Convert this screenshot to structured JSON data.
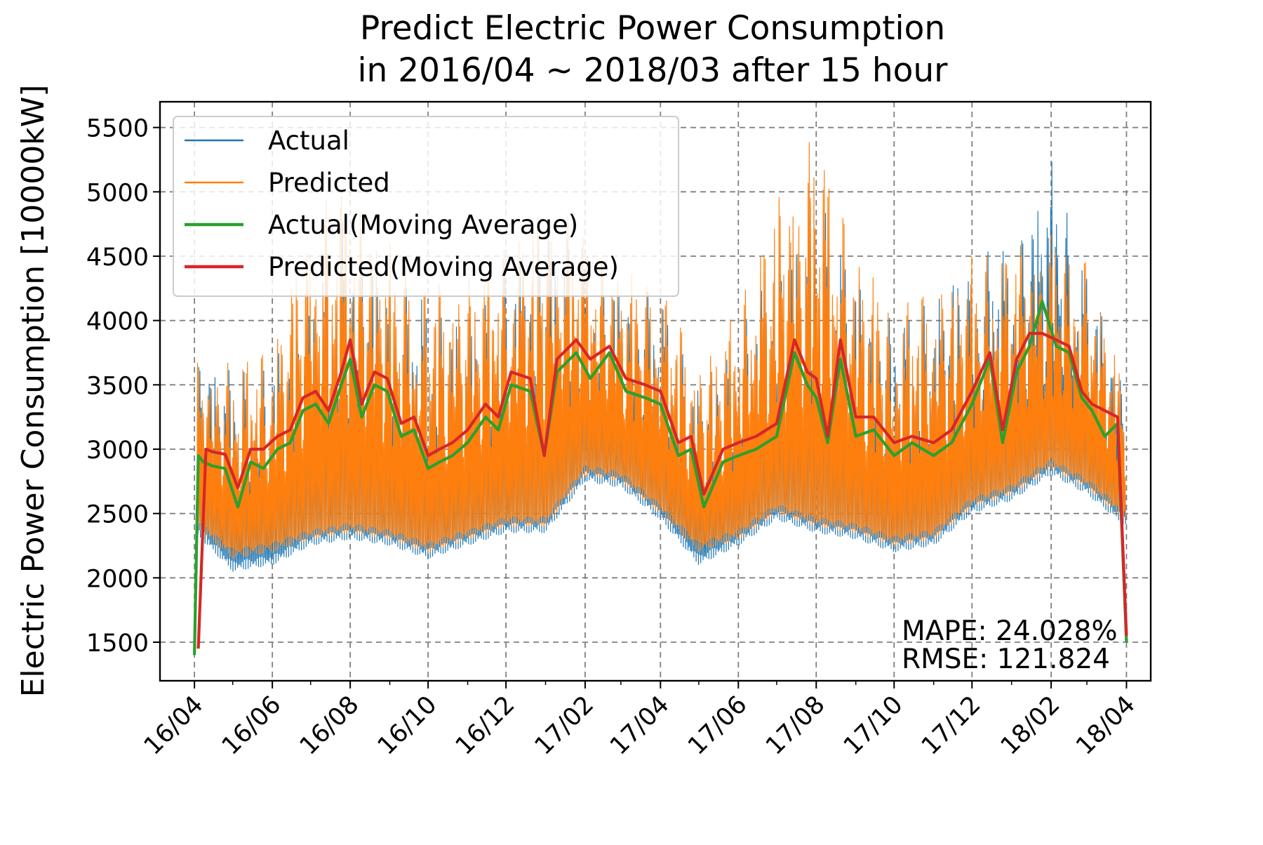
{
  "chart_data": {
    "type": "line",
    "title": "Predict Electric Power Consumption\n in 2016/04 ~ 2018/03 after 15 hour",
    "title_lines": [
      "Predict Electric Power Consumption",
      "in 2016/04 ~ 2018/03 after 15 hour"
    ],
    "xlabel": "",
    "ylabel": "Electric Power Consumption [10000kW]",
    "ylim": [
      1200,
      5700
    ],
    "xlim": [
      "2016-03-05",
      "2018-04-20"
    ],
    "grid": true,
    "legend_position": "top-left",
    "x_ticks": [
      "16/04",
      "16/06",
      "16/08",
      "16/10",
      "16/12",
      "17/02",
      "17/04",
      "17/06",
      "17/08",
      "17/10",
      "17/12",
      "18/02",
      "18/04"
    ],
    "x_tick_dates": [
      "2016-04-01",
      "2016-06-01",
      "2016-08-01",
      "2016-10-01",
      "2016-12-01",
      "2017-02-01",
      "2017-04-01",
      "2017-06-01",
      "2017-08-01",
      "2017-10-01",
      "2017-12-01",
      "2018-02-01",
      "2018-04-01"
    ],
    "y_ticks": [
      1500,
      2000,
      2500,
      3000,
      3500,
      4000,
      4500,
      5000,
      5500
    ],
    "annotations": [
      "MAPE: 24.028%",
      "RMSE: 121.824"
    ],
    "series_styles": [
      {
        "name": "Actual",
        "color": "#1f77b4",
        "kind": "band"
      },
      {
        "name": "Predicted",
        "color": "#ff7f0e",
        "kind": "band"
      },
      {
        "name": "Actual(Moving Average)",
        "color": "#2ca02c",
        "kind": "line"
      },
      {
        "name": "Predicted(Moving Average)",
        "color": "#d62728",
        "kind": "line"
      }
    ],
    "series": [
      {
        "name": "Actual(Moving Average)",
        "x": [
          "2016-04-01",
          "2016-04-04",
          "2016-04-08",
          "2016-04-15",
          "2016-04-25",
          "2016-05-05",
          "2016-05-15",
          "2016-05-25",
          "2016-06-05",
          "2016-06-15",
          "2016-06-25",
          "2016-07-05",
          "2016-07-15",
          "2016-07-25",
          "2016-08-01",
          "2016-08-10",
          "2016-08-20",
          "2016-08-30",
          "2016-09-10",
          "2016-09-20",
          "2016-10-01",
          "2016-10-10",
          "2016-10-20",
          "2016-11-01",
          "2016-11-15",
          "2016-11-25",
          "2016-12-05",
          "2016-12-20",
          "2016-12-31",
          "2017-01-10",
          "2017-01-25",
          "2017-02-05",
          "2017-02-20",
          "2017-03-05",
          "2017-03-20",
          "2017-04-01",
          "2017-04-15",
          "2017-04-25",
          "2017-05-05",
          "2017-05-20",
          "2017-06-01",
          "2017-06-15",
          "2017-07-01",
          "2017-07-15",
          "2017-07-25",
          "2017-08-01",
          "2017-08-10",
          "2017-08-20",
          "2017-09-01",
          "2017-09-15",
          "2017-10-01",
          "2017-10-15",
          "2017-11-01",
          "2017-11-15",
          "2017-12-01",
          "2017-12-15",
          "2017-12-25",
          "2018-01-05",
          "2018-01-15",
          "2018-01-25",
          "2018-02-05",
          "2018-02-15",
          "2018-02-25",
          "2018-03-05",
          "2018-03-15",
          "2018-03-25",
          "2018-04-01"
        ],
        "values": [
          1400,
          2950,
          2900,
          2870,
          2850,
          2550,
          2900,
          2850,
          3000,
          3050,
          3300,
          3350,
          3200,
          3500,
          3700,
          3250,
          3500,
          3450,
          3100,
          3150,
          2850,
          2900,
          2950,
          3050,
          3250,
          3150,
          3500,
          3450,
          2950,
          3600,
          3750,
          3550,
          3750,
          3450,
          3400,
          3350,
          2950,
          3000,
          2550,
          2900,
          2950,
          3000,
          3100,
          3750,
          3500,
          3400,
          3050,
          3700,
          3100,
          3150,
          2950,
          3050,
          2950,
          3050,
          3350,
          3700,
          3050,
          3600,
          3800,
          4150,
          3800,
          3750,
          3400,
          3300,
          3100,
          3200,
          1500
        ]
      },
      {
        "name": "Predicted(Moving Average)",
        "x": [
          "2016-04-04",
          "2016-04-10",
          "2016-04-15",
          "2016-04-25",
          "2016-05-05",
          "2016-05-15",
          "2016-05-25",
          "2016-06-05",
          "2016-06-15",
          "2016-06-25",
          "2016-07-05",
          "2016-07-15",
          "2016-07-25",
          "2016-08-01",
          "2016-08-10",
          "2016-08-20",
          "2016-08-30",
          "2016-09-10",
          "2016-09-20",
          "2016-10-01",
          "2016-10-10",
          "2016-10-20",
          "2016-11-01",
          "2016-11-15",
          "2016-11-25",
          "2016-12-05",
          "2016-12-20",
          "2016-12-31",
          "2017-01-10",
          "2017-01-25",
          "2017-02-05",
          "2017-02-20",
          "2017-03-05",
          "2017-03-20",
          "2017-04-01",
          "2017-04-15",
          "2017-04-25",
          "2017-05-05",
          "2017-05-20",
          "2017-06-01",
          "2017-06-15",
          "2017-07-01",
          "2017-07-15",
          "2017-07-25",
          "2017-08-01",
          "2017-08-10",
          "2017-08-20",
          "2017-09-01",
          "2017-09-15",
          "2017-10-01",
          "2017-10-15",
          "2017-11-01",
          "2017-11-15",
          "2017-12-01",
          "2017-12-15",
          "2017-12-25",
          "2018-01-05",
          "2018-01-15",
          "2018-01-25",
          "2018-02-05",
          "2018-02-15",
          "2018-02-25",
          "2018-03-05",
          "2018-03-15",
          "2018-03-25",
          "2018-04-01"
        ],
        "values": [
          1450,
          3000,
          2980,
          2960,
          2700,
          3000,
          3000,
          3100,
          3150,
          3400,
          3450,
          3300,
          3600,
          3850,
          3350,
          3600,
          3550,
          3200,
          3250,
          2950,
          3000,
          3050,
          3150,
          3350,
          3250,
          3600,
          3550,
          2950,
          3700,
          3850,
          3700,
          3800,
          3550,
          3500,
          3450,
          3050,
          3100,
          2650,
          3000,
          3050,
          3100,
          3200,
          3850,
          3600,
          3550,
          3100,
          3850,
          3250,
          3250,
          3050,
          3100,
          3050,
          3150,
          3450,
          3750,
          3150,
          3700,
          3900,
          3900,
          3850,
          3800,
          3450,
          3350,
          3300,
          3250,
          1550
        ]
      },
      {
        "name": "Actual",
        "x": [
          "2016-04-01",
          "2016-05-01",
          "2016-06-01",
          "2016-07-01",
          "2016-08-01",
          "2016-09-01",
          "2016-10-01",
          "2016-11-01",
          "2016-12-01",
          "2017-01-01",
          "2017-02-01",
          "2017-03-01",
          "2017-04-01",
          "2017-05-01",
          "2017-06-01",
          "2017-07-01",
          "2017-08-01",
          "2017-09-01",
          "2017-10-01",
          "2017-11-01",
          "2017-12-01",
          "2018-01-01",
          "2018-02-01",
          "2018-03-01",
          "2018-03-31"
        ],
        "values_low": [
          2350,
          2050,
          2100,
          2250,
          2300,
          2250,
          2150,
          2250,
          2350,
          2350,
          2750,
          2700,
          2450,
          2100,
          2250,
          2450,
          2350,
          2300,
          2200,
          2250,
          2500,
          2600,
          2800,
          2650,
          2400
        ],
        "values_high": [
          3750,
          3600,
          3700,
          4300,
          4900,
          4300,
          4200,
          4000,
          4400,
          4800,
          4400,
          4300,
          4200,
          3500,
          3900,
          4500,
          5000,
          4400,
          4000,
          4200,
          4500,
          4600,
          5250,
          4400,
          3600
        ]
      },
      {
        "name": "Predicted",
        "x": [
          "2016-04-01",
          "2016-05-01",
          "2016-06-01",
          "2016-07-01",
          "2016-08-01",
          "2016-09-01",
          "2016-10-01",
          "2016-11-01",
          "2016-12-01",
          "2017-01-01",
          "2017-02-01",
          "2017-03-01",
          "2017-04-01",
          "2017-05-01",
          "2017-06-01",
          "2017-07-01",
          "2017-08-01",
          "2017-09-01",
          "2017-10-01",
          "2017-11-01",
          "2017-12-01",
          "2018-01-01",
          "2018-02-01",
          "2018-03-01",
          "2018-03-31"
        ],
        "values_low": [
          2400,
          2150,
          2200,
          2300,
          2350,
          2300,
          2200,
          2300,
          2400,
          2400,
          2800,
          2750,
          2500,
          2200,
          2300,
          2500,
          2400,
          2350,
          2250,
          2300,
          2550,
          2650,
          2850,
          2700,
          2450
        ],
        "values_high": [
          3700,
          3700,
          3800,
          4850,
          5100,
          4600,
          4300,
          4400,
          4600,
          5000,
          4700,
          4400,
          4300,
          3700,
          4100,
          5000,
          5500,
          4600,
          4100,
          4300,
          4500,
          4600,
          4700,
          4500,
          3500
        ]
      }
    ]
  }
}
